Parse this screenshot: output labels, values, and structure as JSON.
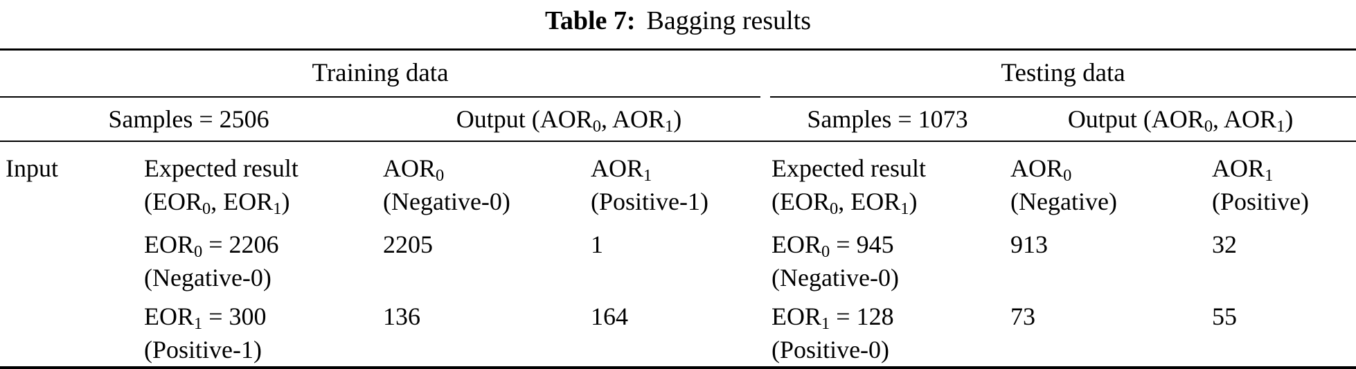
{
  "title": {
    "prefix": "Table 7:",
    "text": "Bagging results"
  },
  "colors": {
    "text": "#000000",
    "background": "#ffffff",
    "rule": "#000000"
  },
  "input_label": "Input",
  "training": {
    "group_label": "Training data",
    "samples_label": "Samples = 2506",
    "output_label": [
      {
        "t": "Output (AOR"
      },
      {
        "t": "0",
        "sub": true
      },
      {
        "t": ", AOR"
      },
      {
        "t": "1",
        "sub": true
      },
      {
        "t": ")"
      }
    ],
    "columns": {
      "expected": {
        "line1": [
          {
            "t": "Expected result"
          }
        ],
        "line2": [
          {
            "t": "(EOR"
          },
          {
            "t": "0",
            "sub": true
          },
          {
            "t": ", EOR"
          },
          {
            "t": "1",
            "sub": true
          },
          {
            "t": ")"
          }
        ]
      },
      "aor0": {
        "line1": [
          {
            "t": "AOR"
          },
          {
            "t": "0",
            "sub": true
          }
        ],
        "line2": [
          {
            "t": "(Negative-0)"
          }
        ]
      },
      "aor1": {
        "line1": [
          {
            "t": "AOR"
          },
          {
            "t": "1",
            "sub": true
          }
        ],
        "line2": [
          {
            "t": "(Positive-1)"
          }
        ]
      }
    },
    "rows": [
      {
        "expected_line1": [
          {
            "t": "EOR"
          },
          {
            "t": "0",
            "sub": true
          },
          {
            "t": " = 2206"
          }
        ],
        "expected_line2": [
          {
            "t": "(Negative-0)"
          }
        ],
        "aor0": "2205",
        "aor1": "1"
      },
      {
        "expected_line1": [
          {
            "t": "EOR"
          },
          {
            "t": "1",
            "sub": true
          },
          {
            "t": " = 300"
          }
        ],
        "expected_line2": [
          {
            "t": "(Positive-1)"
          }
        ],
        "aor0": "136",
        "aor1": "164"
      }
    ]
  },
  "testing": {
    "group_label": "Testing data",
    "samples_label": "Samples = 1073",
    "output_label": [
      {
        "t": "Output (AOR"
      },
      {
        "t": "0",
        "sub": true
      },
      {
        "t": ", AOR"
      },
      {
        "t": "1",
        "sub": true
      },
      {
        "t": ")"
      }
    ],
    "columns": {
      "expected": {
        "line1": [
          {
            "t": "Expected result"
          }
        ],
        "line2": [
          {
            "t": "(EOR"
          },
          {
            "t": "0",
            "sub": true
          },
          {
            "t": ", EOR"
          },
          {
            "t": "1",
            "sub": true
          },
          {
            "t": ")"
          }
        ]
      },
      "aor0": {
        "line1": [
          {
            "t": "AOR"
          },
          {
            "t": "0",
            "sub": true
          }
        ],
        "line2": [
          {
            "t": "(Negative)"
          }
        ]
      },
      "aor1": {
        "line1": [
          {
            "t": "AOR"
          },
          {
            "t": "1",
            "sub": true
          }
        ],
        "line2": [
          {
            "t": "(Positive)"
          }
        ]
      }
    },
    "rows": [
      {
        "expected_line1": [
          {
            "t": "EOR"
          },
          {
            "t": "0",
            "sub": true
          },
          {
            "t": " = 945"
          }
        ],
        "expected_line2": [
          {
            "t": "(Negative-0)"
          }
        ],
        "aor0": "913",
        "aor1": "32"
      },
      {
        "expected_line1": [
          {
            "t": "EOR"
          },
          {
            "t": "1",
            "sub": true
          },
          {
            "t": " = 128"
          }
        ],
        "expected_line2": [
          {
            "t": "(Positive-0)"
          }
        ],
        "aor0": "73",
        "aor1": "55"
      }
    ]
  }
}
